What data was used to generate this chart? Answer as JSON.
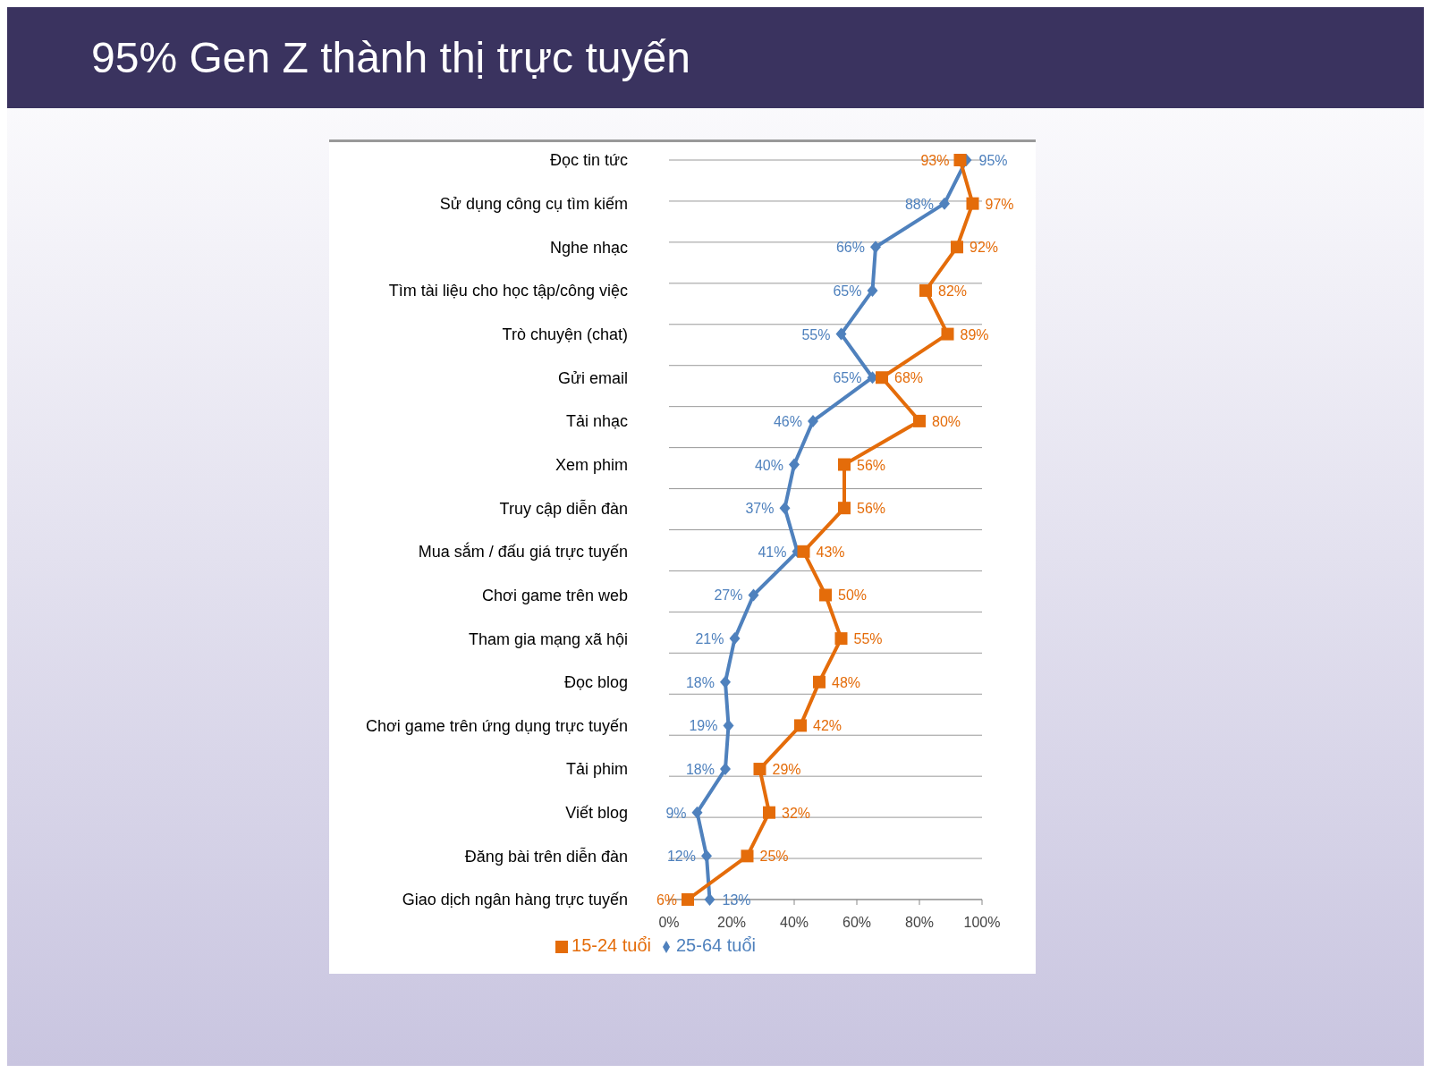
{
  "chart_data": {
    "type": "line",
    "title": "95% Gen Z thành thị trực tuyến",
    "categories": [
      "Đọc tin tức",
      "Sử dụng công cụ tìm kiếm",
      "Nghe nhạc",
      "Tìm tài liệu cho học tập/công việc",
      "Trò chuyện (chat)",
      "Gửi email",
      "Tải nhạc",
      "Xem phim",
      "Truy cập diễn đàn",
      "Mua sắm / đấu giá trực tuyến",
      "Chơi game trên web",
      "Tham gia mạng xã hội",
      "Đọc blog",
      "Chơi game trên ứng dụng trực tuyến",
      "Tải phim",
      "Viết blog",
      "Đăng bài trên diễn đàn",
      "Giao dịch ngân hàng trực tuyến"
    ],
    "orientation": "horizontal",
    "series": [
      {
        "name": "25-64 tuổi",
        "color": "#4f81bd",
        "marker": "diamond",
        "values": [
          95,
          88,
          66,
          65,
          55,
          65,
          46,
          40,
          37,
          41,
          27,
          21,
          18,
          19,
          18,
          9,
          12,
          13
        ],
        "value_labels": [
          "95%",
          "88%",
          "66%",
          "65%",
          "55%",
          "65%",
          "46%",
          "40%",
          "37%",
          "41%",
          "27%",
          "21%",
          "18%",
          "19%",
          "18%",
          "9%",
          "12%",
          "13%"
        ]
      },
      {
        "name": "15-24 tuổi",
        "color": "#e46c0a",
        "marker": "square",
        "values": [
          93,
          97,
          92,
          82,
          89,
          68,
          80,
          56,
          56,
          43,
          50,
          55,
          48,
          42,
          29,
          32,
          25,
          6
        ],
        "value_labels": [
          "93%",
          "97%",
          "92%",
          "82%",
          "89%",
          "68%",
          "80%",
          "56%",
          "56%",
          "43%",
          "50%",
          "55%",
          "48%",
          "42%",
          "29%",
          "32%",
          "25%",
          "6%"
        ]
      }
    ],
    "xlim": [
      0,
      100
    ],
    "xticks": [
      {
        "value": 0,
        "label": "0%"
      },
      {
        "value": 20,
        "label": "20%"
      },
      {
        "value": 40,
        "label": "40%"
      },
      {
        "value": 60,
        "label": "60%"
      },
      {
        "value": 80,
        "label": "80%"
      },
      {
        "value": 100,
        "label": "100%"
      }
    ],
    "grid": "y",
    "legend": "bottom",
    "line_style": "solid"
  }
}
